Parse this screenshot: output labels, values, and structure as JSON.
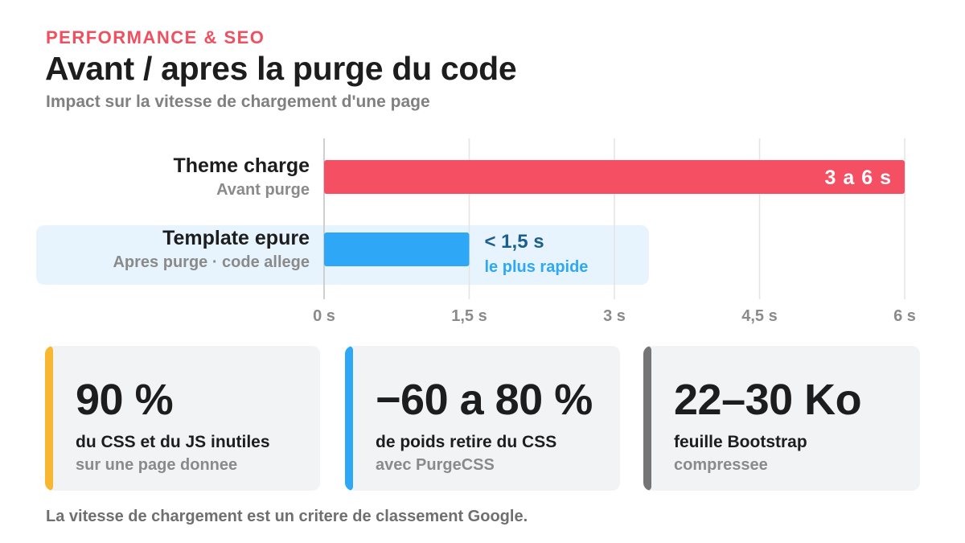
{
  "header": {
    "kicker": "PERFORMANCE & SEO",
    "title": "Avant / apres la purge du code",
    "subtitle": "Impact sur la vitesse de chargement d'une page"
  },
  "chart_data": {
    "type": "bar",
    "orientation": "horizontal",
    "categories": [
      "Theme charge",
      "Template epure"
    ],
    "category_sublabels": [
      "Avant purge",
      "Apres purge · code allege"
    ],
    "series": [
      {
        "values": [
          6,
          1.5
        ]
      }
    ],
    "ranges": [
      [
        3,
        6
      ],
      [
        0,
        1.5
      ]
    ],
    "data_labels": [
      "3 a 6 s",
      "< 1,5 s"
    ],
    "annotations": [
      "le plus rapide"
    ],
    "highlighted_category": "Template epure",
    "xlim": [
      0,
      6
    ],
    "xticks": [
      0,
      1.5,
      3,
      4.5,
      6
    ],
    "xtick_labels": [
      "0 s",
      "1,5 s",
      "3 s",
      "4,5 s",
      "6 s"
    ],
    "xlabel": "",
    "ylabel": "",
    "grid": true,
    "colors": [
      "#f44f63",
      "#2ea8f6"
    ],
    "data_label_colors": [
      "#ffffff",
      "#1d5f8c"
    ],
    "annotation_color": "#2ea8f6"
  },
  "stats": [
    {
      "value": "90 %",
      "label": "du CSS et du JS inutiles",
      "note": "sur une page donnee",
      "color": "#f7b731"
    },
    {
      "value": "−60 a 80 %",
      "label": "de poids retire du CSS",
      "note": "avec PurgeCSS",
      "color": "#2ea8f6"
    },
    {
      "value": "22–30 Ko",
      "label": "feuille Bootstrap",
      "note": "compressee",
      "color": "#757575"
    }
  ],
  "footer": "La vitesse de chargement est un critere de classement Google."
}
